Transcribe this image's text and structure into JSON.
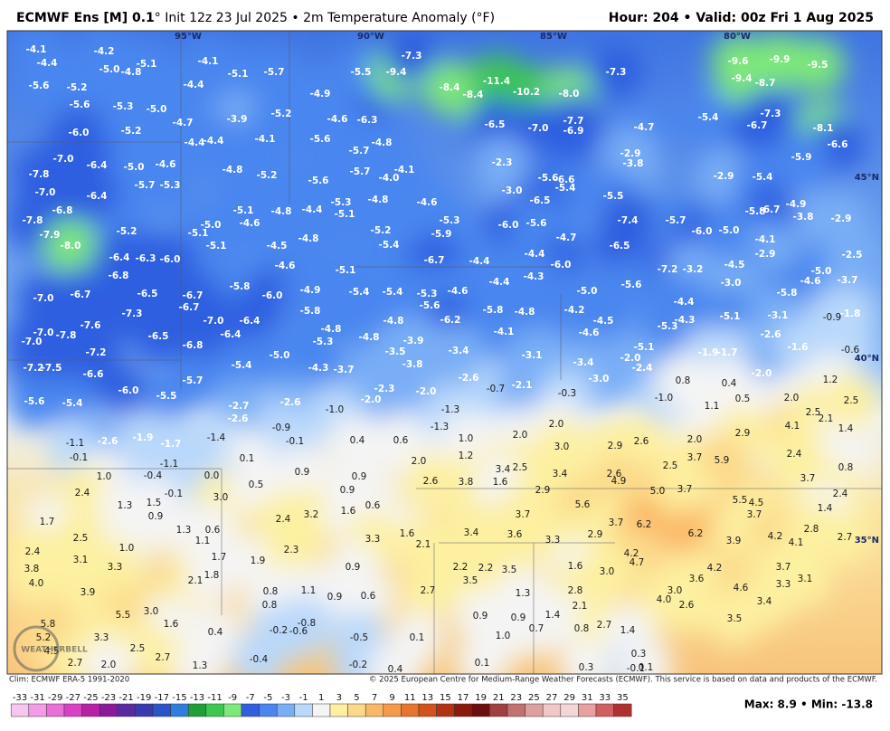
{
  "header": {
    "title": "ECMWF Ens [M] 0.1",
    "subtitle": "° Init 12z 23 Jul 2025 • 2m Temperature Anomaly (°F)",
    "valid": "Hour: 204 • Valid: 00z Fri 1 Aug 2025"
  },
  "graticule_labels": [
    "95°W",
    "90°W",
    "85°W",
    "80°W",
    "45°N",
    "40°N",
    "35°N"
  ],
  "logo": "WEATHERBELL",
  "map_labels": [
    "-4.1",
    "-4.4",
    "-4.2",
    "-5.0",
    "-4.8",
    "-5.1",
    "-4.1",
    "-5.1",
    "-5.7",
    "-4.4",
    "-5.6",
    "-5.2",
    "-5.6",
    "-5.3",
    "-5.0",
    "-4.7",
    "-3.9",
    "-5.2",
    "-4.9",
    "-6.0",
    "-5.2",
    "-4.4",
    "-4.4",
    "-4.1",
    "-5.6",
    "-7.0",
    "-6.4",
    "-5.0",
    "-4.6",
    "-4.8",
    "-5.2",
    "-7.8",
    "-7.0",
    "-6.4",
    "-5.7",
    "-5.3",
    "-5.1",
    "-4.8",
    "-4.4",
    "-6.8",
    "-7.8",
    "-7.9",
    "-8.0",
    "-5.2",
    "-5.0",
    "-4.6",
    "-5.1",
    "-5.1",
    "-4.5",
    "-4.8",
    "-6.4",
    "-6.3",
    "-6.0",
    "-4.6",
    "-6.8",
    "-5.8",
    "-6.0",
    "-4.9",
    "-7.0",
    "-6.7",
    "-6.5",
    "-6.7",
    "-7.3",
    "-6.7",
    "-7.0",
    "-6.4",
    "-5.8",
    "-7.0",
    "-7.8",
    "-7.6",
    "-7.0",
    "-7.2",
    "-6.5",
    "-6.8",
    "-6.4",
    "-7.2",
    "-7.5",
    "-6.6",
    "-6.0",
    "-5.5",
    "-5.6",
    "-5.4",
    "-5.7",
    "-5.4",
    "-5.0",
    "-5.5",
    "-9.4",
    "-7.3",
    "-8.4",
    "-8.4",
    "-11.4",
    "-10.2",
    "-8.0",
    "-7.3",
    "-9.6",
    "-9.9",
    "-9.5",
    "-9.4",
    "-8.7",
    "-7.3",
    "-8.1",
    "-5.4",
    "-4.7",
    "-6.7",
    "-6.6",
    "-5.9",
    "-6.5",
    "-7.0",
    "-7.7",
    "-6.9",
    "-6.3",
    "-4.6",
    "-4.8",
    "-5.7",
    "-4.0",
    "-4.1",
    "-5.6",
    "-5.7",
    "-5.3",
    "-5.1",
    "-4.8",
    "-4.6",
    "-2.3",
    "-5.6",
    "-6.6",
    "-3.0",
    "-5.4",
    "-2.9",
    "-3.8",
    "-6.5",
    "-5.5",
    "-2.9",
    "-5.4",
    "-4.9",
    "-3.8",
    "-5.8",
    "-6.7",
    "-2.9",
    "-5.7",
    "-7.4",
    "-6.0",
    "-5.0",
    "-4.1",
    "-2.9",
    "-5.2",
    "-5.4",
    "-5.9",
    "-5.3",
    "-6.0",
    "-5.6",
    "-4.7",
    "-4.4",
    "-6.5",
    "-4.4",
    "-6.7",
    "-6.0",
    "-7.2",
    "-3.2",
    "-4.5",
    "-5.1",
    "-4.4",
    "-4.3",
    "-5.0",
    "-2.5",
    "-4.6",
    "-3.7",
    "-3.0",
    "-5.6",
    "-5.0",
    "-5.4",
    "-5.4",
    "-5.3",
    "-4.6",
    "-5.6",
    "-6.2",
    "-4.4",
    "-5.8",
    "-5.8",
    "-4.8",
    "-4.2",
    "-4.5",
    "-5.3",
    "-4.3",
    "-5.1",
    "-3.1",
    "-0.9",
    "-1.8",
    "-4.8",
    "-4.8",
    "-5.3",
    "-4.8",
    "-3.9",
    "-3.5",
    "-4.1",
    "-4.6",
    "-2.6",
    "-5.1",
    "-3.4",
    "-3.1",
    "-2.0",
    "-3.4",
    "-1.9",
    "-1.7",
    "-1.6",
    "-0.6",
    "-3.8",
    "-2.4",
    "-3.7",
    "-4.3",
    "-2.6",
    "-3.0",
    "-2.0",
    "-2.3",
    "-2.0",
    "-0.7",
    "-2.1",
    "-0.3",
    "-1.0",
    "0.4",
    "1.2",
    "-2.0",
    "-1.3",
    "-2.7",
    "-2.6",
    "-2.6",
    "-1.0",
    "0.8",
    "0.5",
    "2.0",
    "1.1",
    "-0.9",
    "-1.3",
    "2.0",
    "4.1",
    "2.5",
    "2.1",
    "1.4",
    "2.5",
    "-1.1",
    "-2.6",
    "-1.9",
    "-1.7",
    "-1.4",
    "-0.1",
    "0.4",
    "0.6",
    "1.0",
    "2.0",
    "3.0",
    "2.9",
    "2.6",
    "2.0",
    "2.9",
    "-0.1",
    "-1.1",
    "0.1",
    "2.0",
    "1.2",
    "2.4",
    "0.8",
    "1.0",
    "-0.4",
    "0.0",
    "0.9",
    "0.9",
    "3.4",
    "2.5",
    "3.4",
    "2.6",
    "2.5",
    "3.7",
    "5.9",
    "2.4",
    "-0.1",
    "3.0",
    "0.5",
    "0.9",
    "2.6",
    "3.8",
    "1.6",
    "2.9",
    "4.9",
    "5.0",
    "3.7",
    "3.7",
    "2.4",
    "1.3",
    "1.5",
    "0.6",
    "5.6",
    "5.5",
    "4.5",
    "0.9",
    "2.4",
    "3.2",
    "1.6",
    "3.7",
    "3.7",
    "1.4",
    "1.7",
    "1.3",
    "0.6",
    "1.1",
    "2.5",
    "1.0",
    "1.6",
    "3.4",
    "3.6",
    "3.3",
    "2.9",
    "3.7",
    "6.2",
    "6.2",
    "3.9",
    "4.2",
    "4.1",
    "2.8",
    "2.7",
    "3.3",
    "2.1",
    "2.4",
    "3.1",
    "3.3",
    "1.7",
    "1.9",
    "2.3",
    "4.2",
    "4.7",
    "0.9",
    "2.2",
    "2.2",
    "3.5",
    "1.6",
    "3.0",
    "4.2",
    "3.7",
    "3.8",
    "4.0",
    "2.1",
    "1.8",
    "3.5",
    "3.6",
    "3.1",
    "3.9",
    "0.8",
    "1.1",
    "0.9",
    "0.6",
    "2.7",
    "1.3",
    "2.8",
    "3.0",
    "4.6",
    "3.3",
    "3.0",
    "0.8",
    "2.1",
    "4.0",
    "2.6",
    "3.4",
    "5.5",
    "5.8",
    "1.6",
    "-0.8",
    "0.9",
    "0.9",
    "1.4",
    "3.5",
    "5.2",
    "3.3",
    "0.4",
    "-0.2",
    "-0.6",
    "-0.5",
    "0.1",
    "1.0",
    "0.7",
    "0.8",
    "2.7",
    "1.4",
    "4.5",
    "2.5",
    "2.7",
    "0.3",
    "2.7",
    "2.0",
    "1.3",
    "-0.4",
    "-0.2",
    "0.4",
    "0.1",
    "0.3",
    "-0.1",
    "0.1"
  ],
  "footer": {
    "clim": "Clim: ECMWF ERA-5 1991-2020",
    "copyright": "© 2025 European Centre for Medium-Range Weather Forecasts (ECMWF). This service is based on data and products of the ECMWF.",
    "maxmin": "Max: 8.9 • Min: -13.8"
  },
  "colorbar": {
    "ticks": [
      -33,
      -31,
      -29,
      -27,
      -25,
      -23,
      -21,
      -19,
      -17,
      -15,
      -13,
      -11,
      -9,
      -7,
      -5,
      -3,
      -1,
      1,
      3,
      5,
      7,
      9,
      11,
      13,
      15,
      17,
      19,
      21,
      23,
      25,
      27,
      29,
      31,
      33,
      35
    ],
    "colors": [
      "#f7c6f0",
      "#f39be6",
      "#e870d8",
      "#d940c4",
      "#b820a8",
      "#8a1a9a",
      "#5a2aa0",
      "#3a3ab0",
      "#2a55c8",
      "#2e7ee0",
      "#1f9e3a",
      "#3cc850",
      "#7ee87a",
      "#2f5fe0",
      "#4a86ef",
      "#79aef6",
      "#b9d8fb",
      "#f4f4f4",
      "#fdf0a0",
      "#fcd98a",
      "#fbb765",
      "#f59a4a",
      "#e9742e",
      "#d4521e",
      "#b33212",
      "#8a1a0a",
      "#6e0d0d",
      "#a04040",
      "#c27070",
      "#dca0a0",
      "#f0c8c8",
      "#f5d6d6",
      "#e8a0a0",
      "#d06060",
      "#b03030"
    ]
  }
}
